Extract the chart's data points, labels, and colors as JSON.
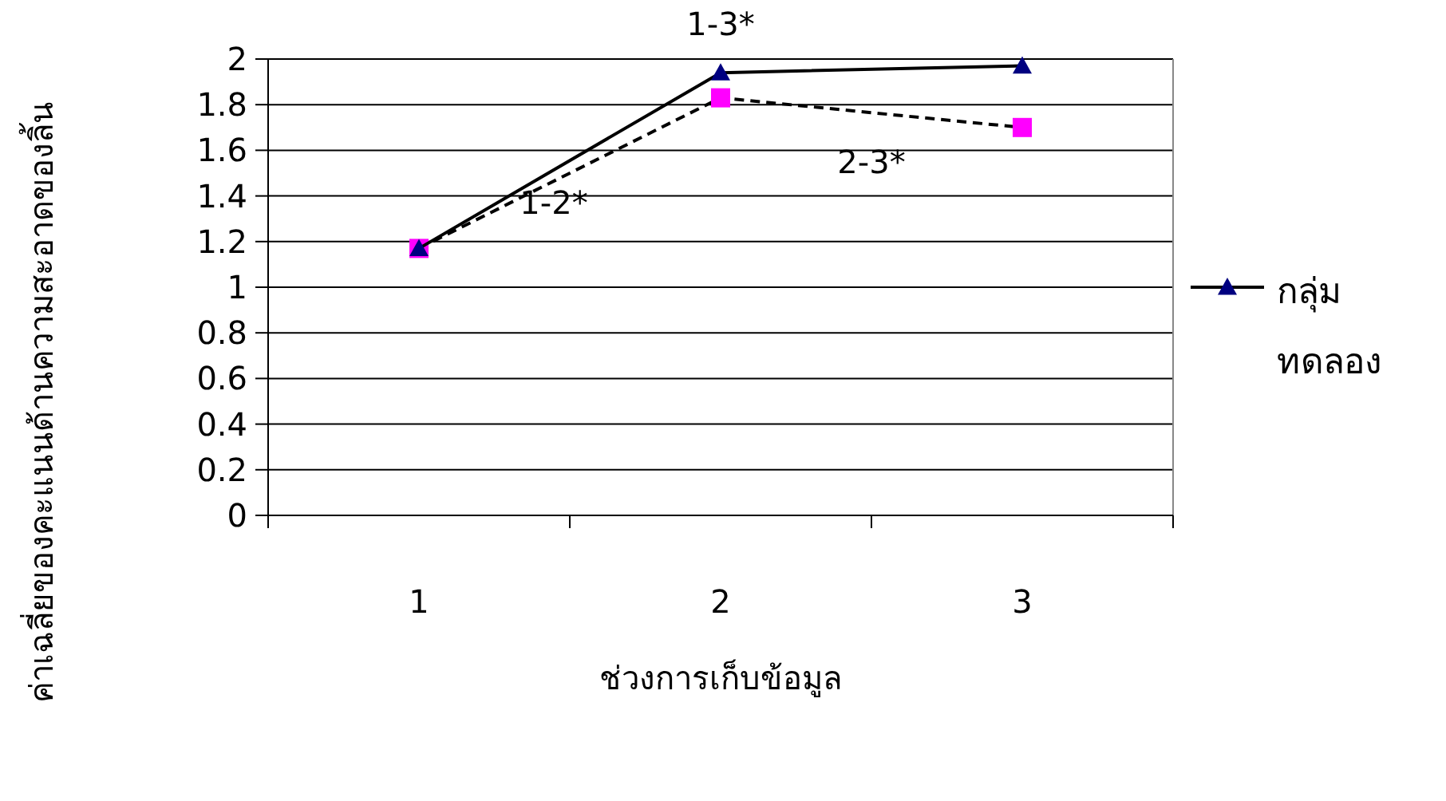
{
  "chart_data": {
    "type": "line",
    "xlabel": "ช่วงการเก็บข้อมูล",
    "ylabel": "ค่าเฉลี่ยของคะแนนด้านความสะอาดของลิ้น",
    "categories": [
      "1",
      "2",
      "3"
    ],
    "series": [
      {
        "name": "กลุ่มทดลอง",
        "color": "#000080",
        "values": [
          1.17,
          1.94,
          1.97
        ],
        "marker": "triangle",
        "line_style": "solid"
      },
      {
        "color": "#ff00ff",
        "values": [
          1.17,
          1.83,
          1.7
        ],
        "marker": "square",
        "line_style": "dashed"
      }
    ],
    "annotations": [
      "1-3*",
      "1-2*",
      "2-3*"
    ],
    "ylim": [
      0,
      2
    ],
    "yticks": [
      0,
      0.2,
      0.4,
      0.6,
      0.8,
      1,
      1.2,
      1.4,
      1.6,
      1.8,
      2
    ],
    "grid": "y",
    "legend": "right"
  }
}
